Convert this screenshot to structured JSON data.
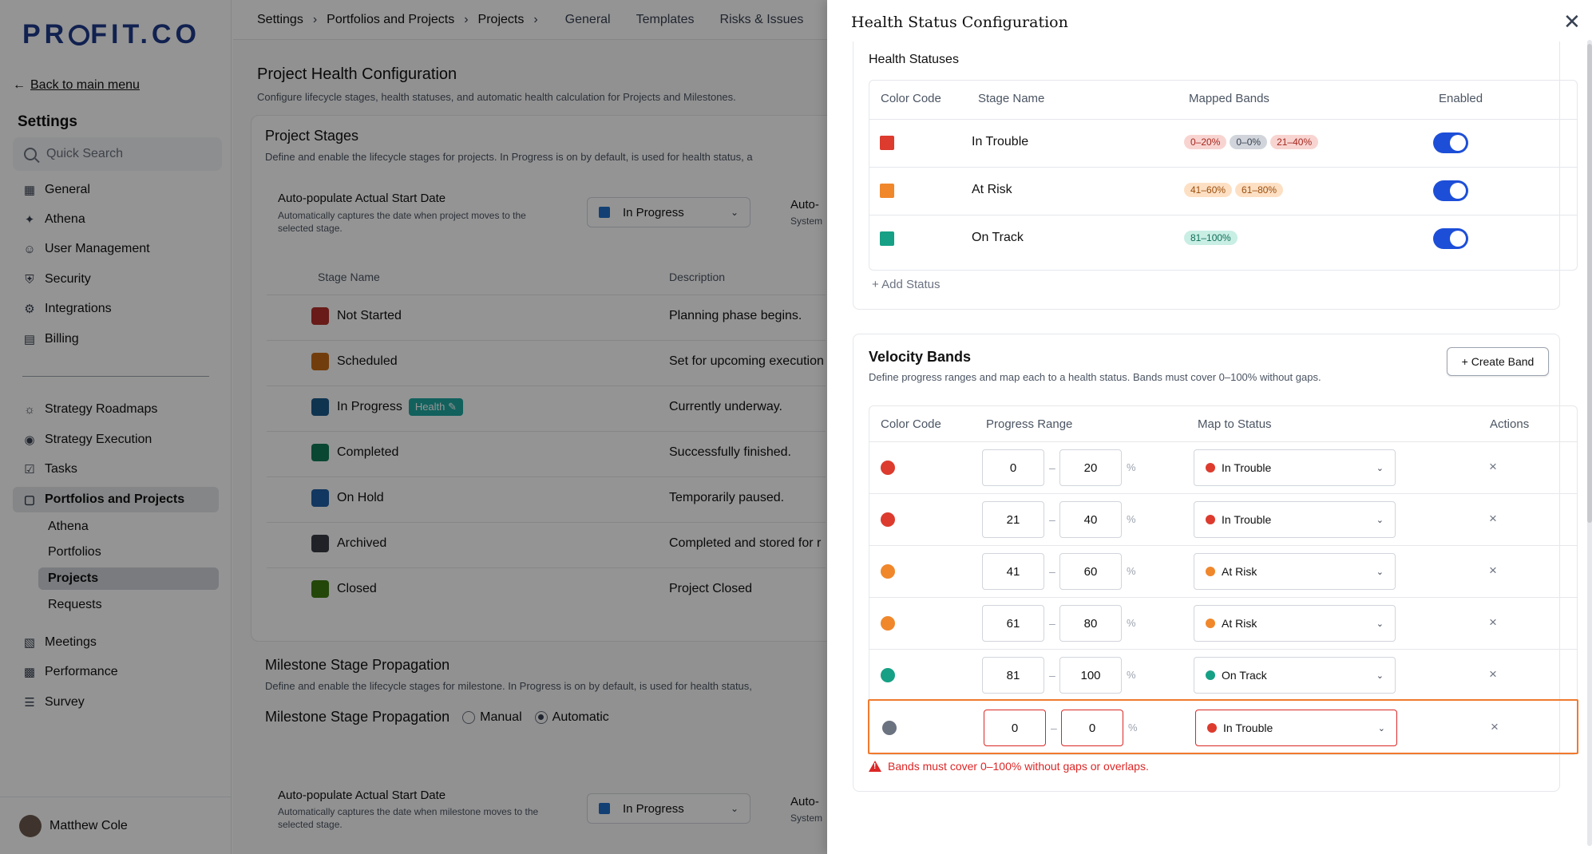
{
  "sidebar": {
    "logo": "PR○FIT.CO",
    "back_link": "Back to main menu",
    "title": "Settings",
    "search_placeholder": "Quick Search",
    "items": [
      {
        "label": "General",
        "icon": "grid-icon"
      },
      {
        "label": "Athena",
        "icon": "sparkle-icon"
      },
      {
        "label": "User Management",
        "icon": "user-icon"
      },
      {
        "label": "Security",
        "icon": "shield-icon"
      },
      {
        "label": "Integrations",
        "icon": "gear-icon"
      },
      {
        "label": "Billing",
        "icon": "receipt-icon"
      }
    ],
    "items2": [
      {
        "label": "Strategy Roadmaps",
        "icon": "sun-icon"
      },
      {
        "label": "Strategy Execution",
        "icon": "target-icon"
      },
      {
        "label": "Tasks",
        "icon": "checkbox-icon"
      },
      {
        "label": "Portfolios and Projects",
        "icon": "briefcase-icon"
      }
    ],
    "sub_items": [
      "Athena",
      "Portfolios",
      "Projects",
      "Requests"
    ],
    "items3": [
      {
        "label": "Meetings",
        "icon": "calendar-icon"
      },
      {
        "label": "Performance",
        "icon": "chart-icon"
      },
      {
        "label": "Survey",
        "icon": "list-icon"
      }
    ],
    "user_name": "Matthew Cole"
  },
  "topbar": {
    "crumbs": [
      "Settings",
      "Portfolios and Projects",
      "Projects"
    ],
    "tabs": [
      "General",
      "Templates",
      "Risks & Issues"
    ]
  },
  "page": {
    "title": "Project Health Configuration",
    "subtitle": "Configure lifecycle stages, health statuses, and automatic health calculation for Projects and Milestones.",
    "stages_title": "Project Stages",
    "stages_subtitle": "Define and enable the lifecycle stages for projects. In Progress is on by default, is used for health status, a",
    "autopop_label": "Auto-populate Actual Start Date",
    "autopop_desc": "Automatically captures the date when project moves to the selected stage.",
    "autopop_value": "In Progress",
    "autopop_right": "Auto-",
    "autopop_right2": "System",
    "col_stage": "Stage Name",
    "col_desc": "Description",
    "stages": [
      {
        "name": "Not Started",
        "desc": "Planning phase begins.",
        "color": "#b3302a"
      },
      {
        "name": "Scheduled",
        "desc": "Set for upcoming execution",
        "color": "#c56a16"
      },
      {
        "name": "In Progress",
        "desc": "Currently underway.",
        "color": "#1a5a8a",
        "badge": "Health ✎"
      },
      {
        "name": "Completed",
        "desc": "Successfully finished.",
        "color": "#127a58"
      },
      {
        "name": "On Hold",
        "desc": "Temporarily paused.",
        "color": "#1f5fa6"
      },
      {
        "name": "Archived",
        "desc": "Completed and stored for r",
        "color": "#373c45"
      },
      {
        "name": "Closed",
        "desc": "Project Closed",
        "color": "#3d7a10"
      }
    ],
    "ms_title": "Milestone Stage Propagation",
    "ms_subtitle": "Define and enable the lifecycle stages for milestone. In Progress is on by default, is used for health status,",
    "ms_prop_label": "Milestone Stage Propagation",
    "ms_manual": "Manual",
    "ms_automatic": "Automatic",
    "ms_autopop_label": "Auto-populate Actual Start Date",
    "ms_autopop_desc": "Automatically captures the date when milestone moves to the selected stage.",
    "ms_autopop_value": "In Progress",
    "ms_right": "Auto-",
    "ms_right2": "System"
  },
  "drawer": {
    "title": "Health Status Configuration",
    "hs_title": "Health Statuses",
    "hs_cols": [
      "Color Code",
      "Stage Name",
      "Mapped Bands",
      "Enabled"
    ],
    "statuses": [
      {
        "name": "In Trouble",
        "color": "#dc3b2e",
        "bands": [
          "0–20%",
          "0–0%",
          "21–40%"
        ],
        "band_styles": [
          "red",
          "gray",
          "red"
        ],
        "enabled": true
      },
      {
        "name": "At Risk",
        "color": "#f0872b",
        "bands": [
          "41–60%",
          "61–80%"
        ],
        "band_styles": [
          "orange",
          "orange"
        ],
        "enabled": true
      },
      {
        "name": "On Track",
        "color": "#16a085",
        "bands": [
          "81–100%"
        ],
        "band_styles": [
          "green"
        ],
        "enabled": true
      }
    ],
    "add_status": "+ Add Status",
    "vb_title": "Velocity Bands",
    "vb_subtitle": "Define progress ranges and map each to a health status. Bands must cover 0–100% without gaps.",
    "create_band": "+ Create Band",
    "vb_cols": [
      "Color Code",
      "Progress Range",
      "Map to Status",
      "Actions"
    ],
    "bands": [
      {
        "color": "#dc3b2e",
        "from": "0",
        "to": "20",
        "status": "In Trouble",
        "status_color": "#dc3b2e",
        "error": false
      },
      {
        "color": "#dc3b2e",
        "from": "21",
        "to": "40",
        "status": "In Trouble",
        "status_color": "#dc3b2e",
        "error": false
      },
      {
        "color": "#f0872b",
        "from": "41",
        "to": "60",
        "status": "At Risk",
        "status_color": "#f0872b",
        "error": false
      },
      {
        "color": "#f0872b",
        "from": "61",
        "to": "80",
        "status": "At Risk",
        "status_color": "#f0872b",
        "error": false
      },
      {
        "color": "#16a085",
        "from": "81",
        "to": "100",
        "status": "On Track",
        "status_color": "#16a085",
        "error": false
      },
      {
        "color": "#6b7280",
        "from": "0",
        "to": "0",
        "status": "In Trouble",
        "status_color": "#dc3b2e",
        "error": true
      }
    ],
    "dash": "–",
    "pct": "%",
    "delete_glyph": "×",
    "error_msg": "Bands must cover 0–100% without gaps or overlaps."
  }
}
